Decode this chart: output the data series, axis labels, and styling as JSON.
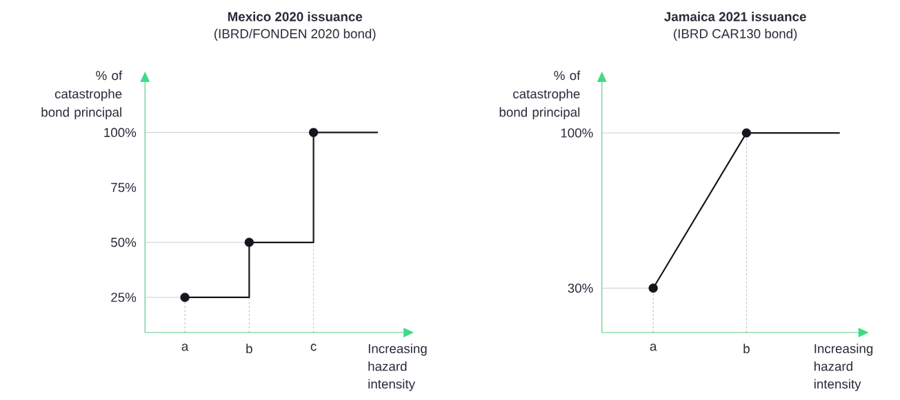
{
  "chart_data": [
    {
      "type": "step",
      "title": "Mexico 2020 issuance",
      "subtitle": "(IBRD/FONDEN 2020 bond)",
      "xlabel": "Increasing hazard intensity",
      "ylabel": "% of catastrophe bond principal",
      "categories": [
        "a",
        "b",
        "c",
        null
      ],
      "ylim": [
        9,
        123
      ],
      "yticks": [
        {
          "value": 25,
          "label": "25%"
        },
        {
          "value": 50,
          "label": "50%"
        },
        {
          "value": 75,
          "label": "75%"
        },
        {
          "value": 100,
          "label": "100%"
        }
      ],
      "ref_lines": [
        {
          "axis": "y",
          "value": 25,
          "color": "#bfbfbf"
        },
        {
          "axis": "y",
          "value": 50,
          "color": "#bfbfbf"
        },
        {
          "axis": "y",
          "value": 100,
          "color": "#bfbfbf"
        }
      ],
      "series": [
        {
          "color": "#15151f",
          "values": [
            25,
            50,
            100,
            100
          ]
        },
        {
          "type": "scatter",
          "color": "#15151f",
          "marker": "circle",
          "values": [
            25,
            50,
            100,
            null
          ]
        }
      ]
    },
    {
      "type": "line",
      "title": "Jamaica 2021 issuance",
      "subtitle": "(IBRD CAR130 bond)",
      "xlabel": "Increasing hazard intensity",
      "ylabel": "% of catastrophe bond principal",
      "categories": [
        "a",
        "b",
        null
      ],
      "ylim": [
        10,
        123
      ],
      "yticks": [
        {
          "value": 30,
          "label": "30%"
        },
        {
          "value": 100,
          "label": "100%"
        }
      ],
      "ref_lines": [
        {
          "axis": "y",
          "value": 30,
          "color": "#bfbfbf"
        },
        {
          "axis": "y",
          "value": 100,
          "color": "#bfbfbf"
        }
      ],
      "series": [
        {
          "color": "#15151f",
          "values": [
            30,
            100,
            100
          ]
        },
        {
          "type": "scatter",
          "color": "#15151f",
          "marker": "circle",
          "values": [
            30,
            100,
            null
          ]
        }
      ]
    }
  ]
}
